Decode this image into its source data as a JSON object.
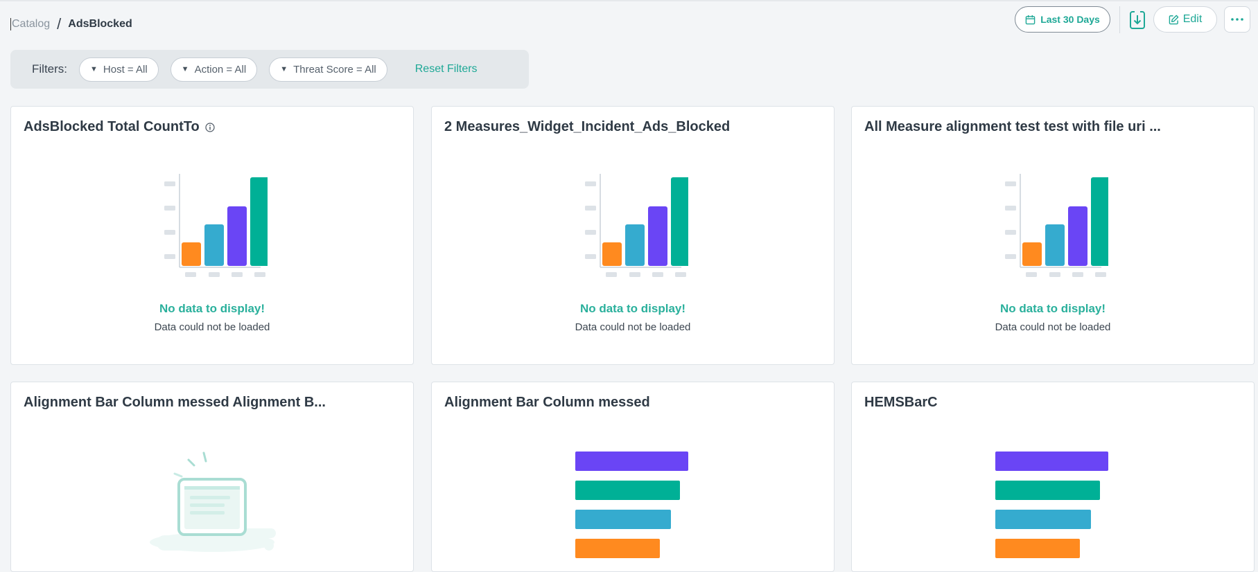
{
  "breadcrumb": {
    "parent": "Catalog",
    "separator": "/",
    "current": "AdsBlocked"
  },
  "header": {
    "date_range_label": "Last 30 Days",
    "edit_label": "Edit",
    "more_label": "···"
  },
  "filters": {
    "label": "Filters:",
    "pills": [
      {
        "label": "Host = All"
      },
      {
        "label": "Action = All"
      },
      {
        "label": "Threat Score = All"
      }
    ],
    "reset_label": "Reset Filters"
  },
  "widgets": [
    {
      "title": "AdsBlocked Total CountTo",
      "has_info_icon": true,
      "state_title": "No data to display!",
      "state_message": "Data could not be loaded",
      "illustration": "column-chart-illustration"
    },
    {
      "title": "2 Measures_Widget_Incident_Ads_Blocked",
      "state_title": "No data to display!",
      "state_message": "Data could not be loaded",
      "illustration": "column-chart-illustration"
    },
    {
      "title": "All Measure alignment test test with file uri ...",
      "state_title": "No data to display!",
      "state_message": "Data could not be loaded",
      "illustration": "column-chart-illustration"
    },
    {
      "title": "Alignment Bar Column messed Alignment B...",
      "illustration": "empty-screen-illustration"
    },
    {
      "title": "Alignment Bar Column messed",
      "illustration": "bar-chart-illustration"
    },
    {
      "title": "HEMSBarC",
      "illustration": "bar-chart-illustration"
    }
  ],
  "colors": {
    "accent": "#1ea896",
    "orange": "#ff8a1f",
    "blue": "#35abcf",
    "purple": "#6a45f5",
    "teal": "#00b096"
  }
}
